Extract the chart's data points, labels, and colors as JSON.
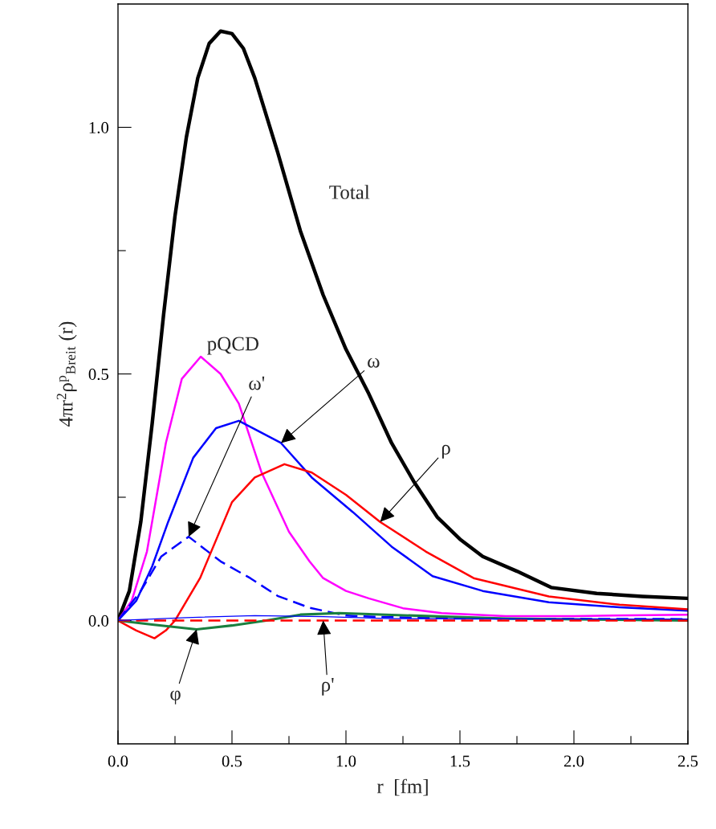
{
  "chart_data": {
    "type": "line",
    "xlabel": "r  [fm]",
    "ylabel": "4πr$^{2}$ρ$^{p}$$_{Breit}$ (r)",
    "xlim": [
      0,
      2.5
    ],
    "ylim": [
      -0.25,
      1.25
    ],
    "xticks": [
      {
        "value": 0,
        "label": "0.0"
      },
      {
        "value": 0.25,
        "label": null
      },
      0.5,
      {
        "value": 0.75,
        "label": null
      },
      {
        "value": 1,
        "label": "1.0"
      },
      {
        "value": 1.25,
        "label": null
      },
      1.5,
      {
        "value": 1.75,
        "label": null
      },
      {
        "value": 2,
        "label": "2.0"
      },
      {
        "value": 2.25,
        "label": null
      },
      2.5
    ],
    "yticks": [
      {
        "value": 0,
        "label": "0.0"
      },
      {
        "value": 0.25,
        "label": null
      },
      0.5,
      {
        "value": 0.75,
        "label": null
      },
      {
        "value": 1,
        "label": "1.0"
      }
    ],
    "grid": false,
    "legend": false,
    "series": [
      {
        "name": "Total",
        "color": "#000000",
        "line_style": "solid",
        "x": [
          0,
          0.05,
          0.1,
          0.15,
          0.2,
          0.25,
          0.3,
          0.35,
          0.4,
          0.45,
          0.5,
          0.55,
          0.6,
          0.7,
          0.8,
          0.9,
          1.0,
          1.1,
          1.2,
          1.3,
          1.4,
          1.5,
          1.6,
          1.75,
          1.9,
          2.1,
          2.3,
          2.5
        ],
        "values": [
          0,
          0.06,
          0.2,
          0.4,
          0.62,
          0.82,
          0.98,
          1.1,
          1.17,
          1.195,
          1.19,
          1.16,
          1.1,
          0.95,
          0.79,
          0.66,
          0.55,
          0.46,
          0.36,
          0.28,
          0.21,
          0.165,
          0.13,
          0.1,
          0.067,
          0.055,
          0.049,
          0.045
        ]
      },
      {
        "name": "pQCD",
        "color": "#ff00ff",
        "line_style": "solid",
        "x": [
          0,
          0.06,
          0.127,
          0.21,
          0.28,
          0.363,
          0.45,
          0.53,
          0.63,
          0.75,
          0.84,
          0.9,
          1.0,
          1.1,
          1.25,
          1.42,
          1.7,
          2.0,
          2.5
        ],
        "values": [
          0,
          0.04,
          0.14,
          0.36,
          0.49,
          0.535,
          0.5,
          0.44,
          0.3,
          0.18,
          0.12,
          0.086,
          0.06,
          0.045,
          0.025,
          0.015,
          0.009,
          0.009,
          0.012
        ]
      },
      {
        "name": "ω",
        "color": "#0000ff",
        "line_style": "solid",
        "x": [
          0,
          0.08,
          0.15,
          0.22,
          0.33,
          0.43,
          0.53,
          0.715,
          0.85,
          1.03,
          1.2,
          1.38,
          1.6,
          1.89,
          2.2,
          2.5
        ],
        "values": [
          0,
          0.04,
          0.11,
          0.2,
          0.33,
          0.39,
          0.405,
          0.36,
          0.29,
          0.22,
          0.15,
          0.09,
          0.06,
          0.037,
          0.027,
          0.02
        ]
      },
      {
        "name": "ω'",
        "color": "#0000ff",
        "line_style": "dashed",
        "x": [
          0,
          0.1,
          0.19,
          0.31,
          0.45,
          0.58,
          0.7,
          0.84,
          1.0,
          1.1,
          1.5,
          2.5
        ],
        "values": [
          0,
          0.06,
          0.13,
          0.17,
          0.12,
          0.086,
          0.05,
          0.026,
          0.01,
          0.008,
          0.004,
          0.003
        ]
      },
      {
        "name": "ρ",
        "color": "#ff0000",
        "line_style": "solid",
        "x": [
          0,
          0.08,
          0.16,
          0.21,
          0.25,
          0.36,
          0.5,
          0.6,
          0.73,
          0.85,
          1.0,
          1.15,
          1.35,
          1.56,
          1.89,
          2.2,
          2.5
        ],
        "values": [
          0,
          -0.02,
          -0.036,
          -0.02,
          0,
          0.086,
          0.24,
          0.29,
          0.317,
          0.3,
          0.255,
          0.2,
          0.14,
          0.086,
          0.049,
          0.032,
          0.023
        ]
      },
      {
        "name": "φ",
        "color": "#1a8040",
        "line_style": "solid",
        "x": [
          0,
          0.15,
          0.345,
          0.5,
          0.65,
          0.8,
          0.97,
          1.3,
          1.7,
          2.5
        ],
        "values": [
          0,
          -0.008,
          -0.018,
          -0.01,
          0,
          0.012,
          0.015,
          0.01,
          0.004,
          0
        ]
      },
      {
        "name": "ρ'",
        "color": "#ff0000",
        "line_style": "dashed",
        "x": [
          0,
          0.9,
          2.5
        ],
        "values": [
          0,
          0,
          0
        ]
      },
      {
        "color": "#0000ff",
        "line_style": "solid",
        "x": [
          0,
          0.3,
          0.6,
          0.9,
          1.2,
          2.5
        ],
        "values": [
          0,
          0.006,
          0.01,
          0.008,
          0.004,
          0.003
        ]
      }
    ]
  }
}
